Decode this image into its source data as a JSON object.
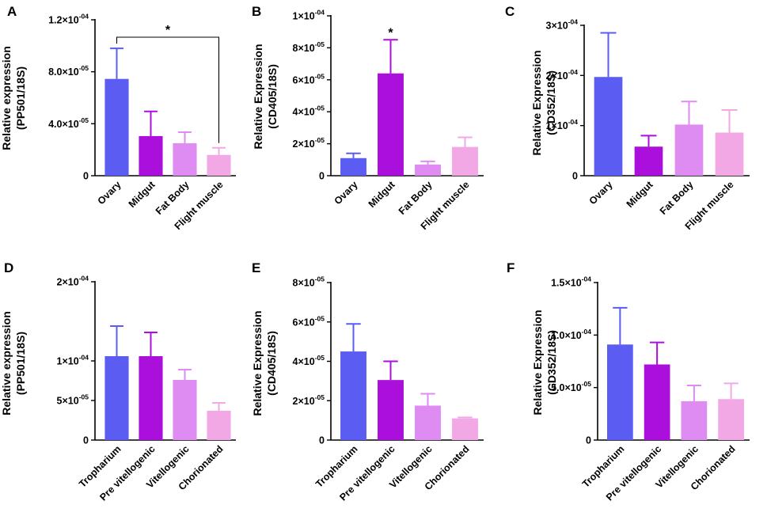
{
  "colors": [
    "#5a5cf2",
    "#aa0fdb",
    "#de8cf2",
    "#f3a8e6"
  ],
  "chart_data": [
    {
      "type": "bar",
      "panel": "A",
      "ylabel_lines": [
        "Relative expression",
        "(PP501/18S)"
      ],
      "categories": [
        "Ovary",
        "Midgut",
        "Fat Body",
        "Flight muscle"
      ],
      "values": [
        7.45e-05,
        3.05e-05,
        2.5e-05,
        1.6e-05
      ],
      "errors": [
        2.35e-05,
        1.9e-05,
        8.5e-06,
        5.5e-06
      ],
      "ylim": [
        0,
        0.00012
      ],
      "ticks": [
        {
          "value": 0,
          "mant": "0",
          "exp": ""
        },
        {
          "value": 4e-05,
          "mant": "4.0×10",
          "exp": "-05"
        },
        {
          "value": 8e-05,
          "mant": "8.0×10",
          "exp": "-05"
        },
        {
          "value": 0.00012,
          "mant": "1.2×10",
          "exp": "-04"
        }
      ],
      "annotations": [
        {
          "type": "bracket",
          "from": 0,
          "to": 3,
          "text": "*"
        }
      ]
    },
    {
      "type": "bar",
      "panel": "B",
      "ylabel_lines": [
        "Relative Expression",
        "(CD405/18S)"
      ],
      "categories": [
        "Ovary",
        "Midgut",
        "Fat Body",
        "Flight muscle"
      ],
      "values": [
        1.1e-05,
        6.4e-05,
        7e-06,
        1.8e-05
      ],
      "errors": [
        3e-06,
        2.1e-05,
        2e-06,
        6e-06
      ],
      "ylim": [
        0,
        0.0001
      ],
      "ticks": [
        {
          "value": 0,
          "mant": "0",
          "exp": ""
        },
        {
          "value": 2e-05,
          "mant": "2×10",
          "exp": "-05"
        },
        {
          "value": 4e-05,
          "mant": "4×10",
          "exp": "-05"
        },
        {
          "value": 6e-05,
          "mant": "6×10",
          "exp": "-05"
        },
        {
          "value": 8e-05,
          "mant": "8×10",
          "exp": "-05"
        },
        {
          "value": 0.0001,
          "mant": "1×10",
          "exp": "-04"
        }
      ],
      "annotations": [
        {
          "type": "star",
          "at": 1,
          "text": "*"
        }
      ]
    },
    {
      "type": "bar",
      "panel": "C",
      "ylabel_lines": [
        "Relative Expression",
        "(CD352/18S)"
      ],
      "categories": [
        "Ovary",
        "Midgut",
        "Fat Body",
        "Flight muscle"
      ],
      "values": [
        0.000197,
        5.8e-05,
        0.000102,
        8.6e-05
      ],
      "errors": [
        8.8e-05,
        2.2e-05,
        4.6e-05,
        4.5e-05
      ],
      "ylim": [
        0,
        0.0003
      ],
      "ticks": [
        {
          "value": 0,
          "mant": "0",
          "exp": ""
        },
        {
          "value": 0.0001,
          "mant": "1×10",
          "exp": "-04"
        },
        {
          "value": 0.0002,
          "mant": "2×10",
          "exp": "-04"
        },
        {
          "value": 0.0003,
          "mant": "3×10",
          "exp": "-04"
        }
      ],
      "annotations": []
    },
    {
      "type": "bar",
      "panel": "D",
      "ylabel_lines": [
        "Relative expression",
        "(PP501/18S)"
      ],
      "categories": [
        "Tropharium",
        "Pre vitellogenic",
        "Vitellogenic",
        "Chorionated"
      ],
      "values": [
        0.000106,
        0.000106,
        7.6e-05,
        3.7e-05
      ],
      "errors": [
        3.8e-05,
        3e-05,
        1.3e-05,
        1e-05
      ],
      "ylim": [
        0,
        0.0002
      ],
      "ticks": [
        {
          "value": 0,
          "mant": "0",
          "exp": ""
        },
        {
          "value": 5e-05,
          "mant": "5×10",
          "exp": "-05"
        },
        {
          "value": 0.0001,
          "mant": "1×10",
          "exp": "-04"
        },
        {
          "value": 0.0002,
          "mant": "2×10",
          "exp": "-04"
        }
      ],
      "annotations": []
    },
    {
      "type": "bar",
      "panel": "E",
      "ylabel_lines": [
        "Relative Expression",
        "(CD405/18S)"
      ],
      "categories": [
        "Tropharium",
        "Pre vitellogenic",
        "Vitellogenic",
        "Chorionated"
      ],
      "values": [
        4.5e-05,
        3.05e-05,
        1.75e-05,
        1.1e-05
      ],
      "errors": [
        1.4e-05,
        9.5e-06,
        6e-06,
        5e-07
      ],
      "ylim": [
        0,
        8e-05
      ],
      "ticks": [
        {
          "value": 0,
          "mant": "0",
          "exp": ""
        },
        {
          "value": 2e-05,
          "mant": "2×10",
          "exp": "-05"
        },
        {
          "value": 4e-05,
          "mant": "4×10",
          "exp": "-05"
        },
        {
          "value": 6e-05,
          "mant": "6×10",
          "exp": "-05"
        },
        {
          "value": 8e-05,
          "mant": "8×10",
          "exp": "-05"
        }
      ],
      "annotations": []
    },
    {
      "type": "bar",
      "panel": "F",
      "ylabel_lines": [
        "Relative Expression",
        "(CD352/18S)"
      ],
      "categories": [
        "Tropharium",
        "Pre vitellogenic",
        "Vitellogenic",
        "Chorionated"
      ],
      "values": [
        9.1e-05,
        7.2e-05,
        3.7e-05,
        3.9e-05
      ],
      "errors": [
        3.5e-05,
        2.1e-05,
        1.5e-05,
        1.5e-05
      ],
      "ylim": [
        0,
        0.00015
      ],
      "ticks": [
        {
          "value": 0,
          "mant": "0",
          "exp": ""
        },
        {
          "value": 5e-05,
          "mant": "5.0×10",
          "exp": "-05"
        },
        {
          "value": 0.0001,
          "mant": "1.0×10",
          "exp": "-04"
        },
        {
          "value": 0.00015,
          "mant": "1.5×10",
          "exp": "-04"
        }
      ],
      "annotations": []
    }
  ]
}
